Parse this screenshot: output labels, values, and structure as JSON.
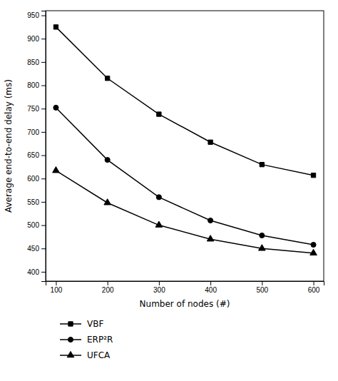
{
  "chart_data": {
    "type": "line",
    "x": [
      100,
      200,
      300,
      400,
      500,
      600
    ],
    "series": [
      {
        "name": "VBF",
        "color": "#000000",
        "marker": "square",
        "values": [
          925,
          815,
          738,
          678,
          630,
          607
        ]
      },
      {
        "name": "ERP²R",
        "color": "#000000",
        "marker": "circle",
        "values": [
          752,
          640,
          560,
          510,
          478,
          458
        ]
      },
      {
        "name": "UFCA",
        "color": "#000000",
        "marker": "triangle-up",
        "values": [
          617,
          548,
          500,
          470,
          450,
          440
        ]
      }
    ],
    "xlabel": "Number of nodes (#)",
    "ylabel": "Average end-to-end delay (ms)",
    "xlim": [
      80,
      620
    ],
    "ylim": [
      380,
      960
    ],
    "xticks": [
      100,
      200,
      300,
      400,
      500,
      600
    ],
    "yticks": [
      400,
      450,
      500,
      550,
      600,
      650,
      700,
      750,
      800,
      850,
      900,
      950
    ],
    "legend": "bottom",
    "grid": false
  }
}
